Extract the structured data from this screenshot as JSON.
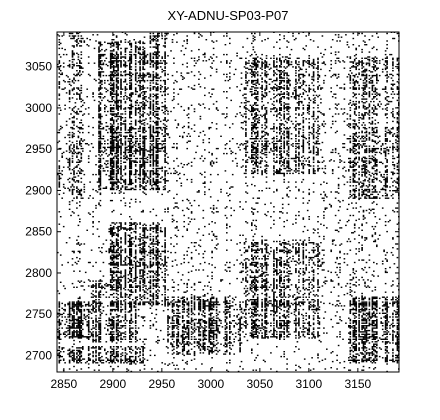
{
  "chart_data": {
    "type": "heatmap",
    "title": "XY-ADNU-SP03-P07",
    "xlabel": "",
    "ylabel": "",
    "xlim": [
      2843,
      3192
    ],
    "ylim": [
      2680,
      3092
    ],
    "x_ticks": [
      2850,
      2900,
      2950,
      3000,
      3050,
      3100,
      3150
    ],
    "y_ticks": [
      2700,
      2750,
      2800,
      2850,
      2900,
      2950,
      3000,
      3050
    ],
    "grid": false,
    "legend": "none",
    "colors": {
      "mark": "#000000",
      "background": "#ffffff",
      "frame": "#000000"
    },
    "dense_regions": [
      {
        "x": [
          2843,
          2875
        ],
        "y": [
          2720,
          2765
        ],
        "density": 0.55
      },
      {
        "x": [
          2843,
          2930
        ],
        "y": [
          2690,
          2710
        ],
        "density": 0.45
      },
      {
        "x": [
          2875,
          2925
        ],
        "y": [
          2715,
          2790
        ],
        "density": 0.35
      },
      {
        "x": [
          2895,
          2955
        ],
        "y": [
          2760,
          2860
        ],
        "density": 0.4
      },
      {
        "x": [
          2885,
          2955
        ],
        "y": [
          2900,
          3080
        ],
        "density": 0.4
      },
      {
        "x": [
          2935,
          2955
        ],
        "y": [
          2940,
          3090
        ],
        "density": 0.35
      },
      {
        "x": [
          2955,
          3030
        ],
        "y": [
          2700,
          2770
        ],
        "density": 0.35
      },
      {
        "x": [
          3030,
          3110
        ],
        "y": [
          2720,
          2780
        ],
        "density": 0.35
      },
      {
        "x": [
          3030,
          3110
        ],
        "y": [
          2920,
          3060
        ],
        "density": 0.3
      },
      {
        "x": [
          3030,
          3110
        ],
        "y": [
          2780,
          2840
        ],
        "density": 0.3
      },
      {
        "x": [
          3140,
          3192
        ],
        "y": [
          2690,
          2770
        ],
        "density": 0.4
      },
      {
        "x": [
          3140,
          3192
        ],
        "y": [
          2890,
          3060
        ],
        "density": 0.25
      },
      {
        "x": [
          2843,
          2870
        ],
        "y": [
          2890,
          3092
        ],
        "density": 0.18
      }
    ],
    "background_density": 0.05
  }
}
